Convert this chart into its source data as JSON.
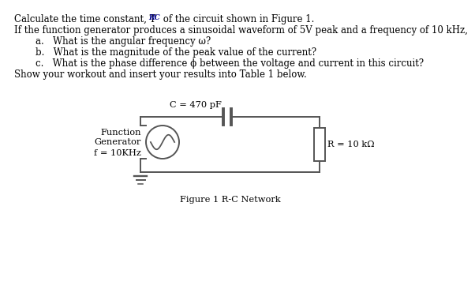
{
  "bg_color": "#ffffff",
  "text_color": "#000000",
  "title_sub_color": "#00008B",
  "line1a": "Calculate the time constant, T",
  "line1b": "RC",
  "line1c": " of the circuit shown in Figure 1.",
  "line2": "If the function generator produces a sinusoidal waveform of 5V peak and a frequency of 10 kHz,",
  "item_a": "a.   What is the angular frequency ω?",
  "item_b": "b.   What is the magnitude of the peak value of the current?",
  "item_c": "c.   What is the phase difference ϕ between the voltage and current in this circuit?",
  "line3": "Show your workout and insert your results into Table 1 below.",
  "cap_label": "C = 470 pF",
  "res_label": "R = 10 kΩ",
  "gen_label1": "Function",
  "gen_label2": "Generator",
  "freq_label": "f = 10KHz",
  "fig_caption": "Figure 1 R-C Network",
  "circuit_color": "#555555",
  "font_size_main": 8.5,
  "font_size_circuit": 8.2,
  "line_width": 1.4
}
